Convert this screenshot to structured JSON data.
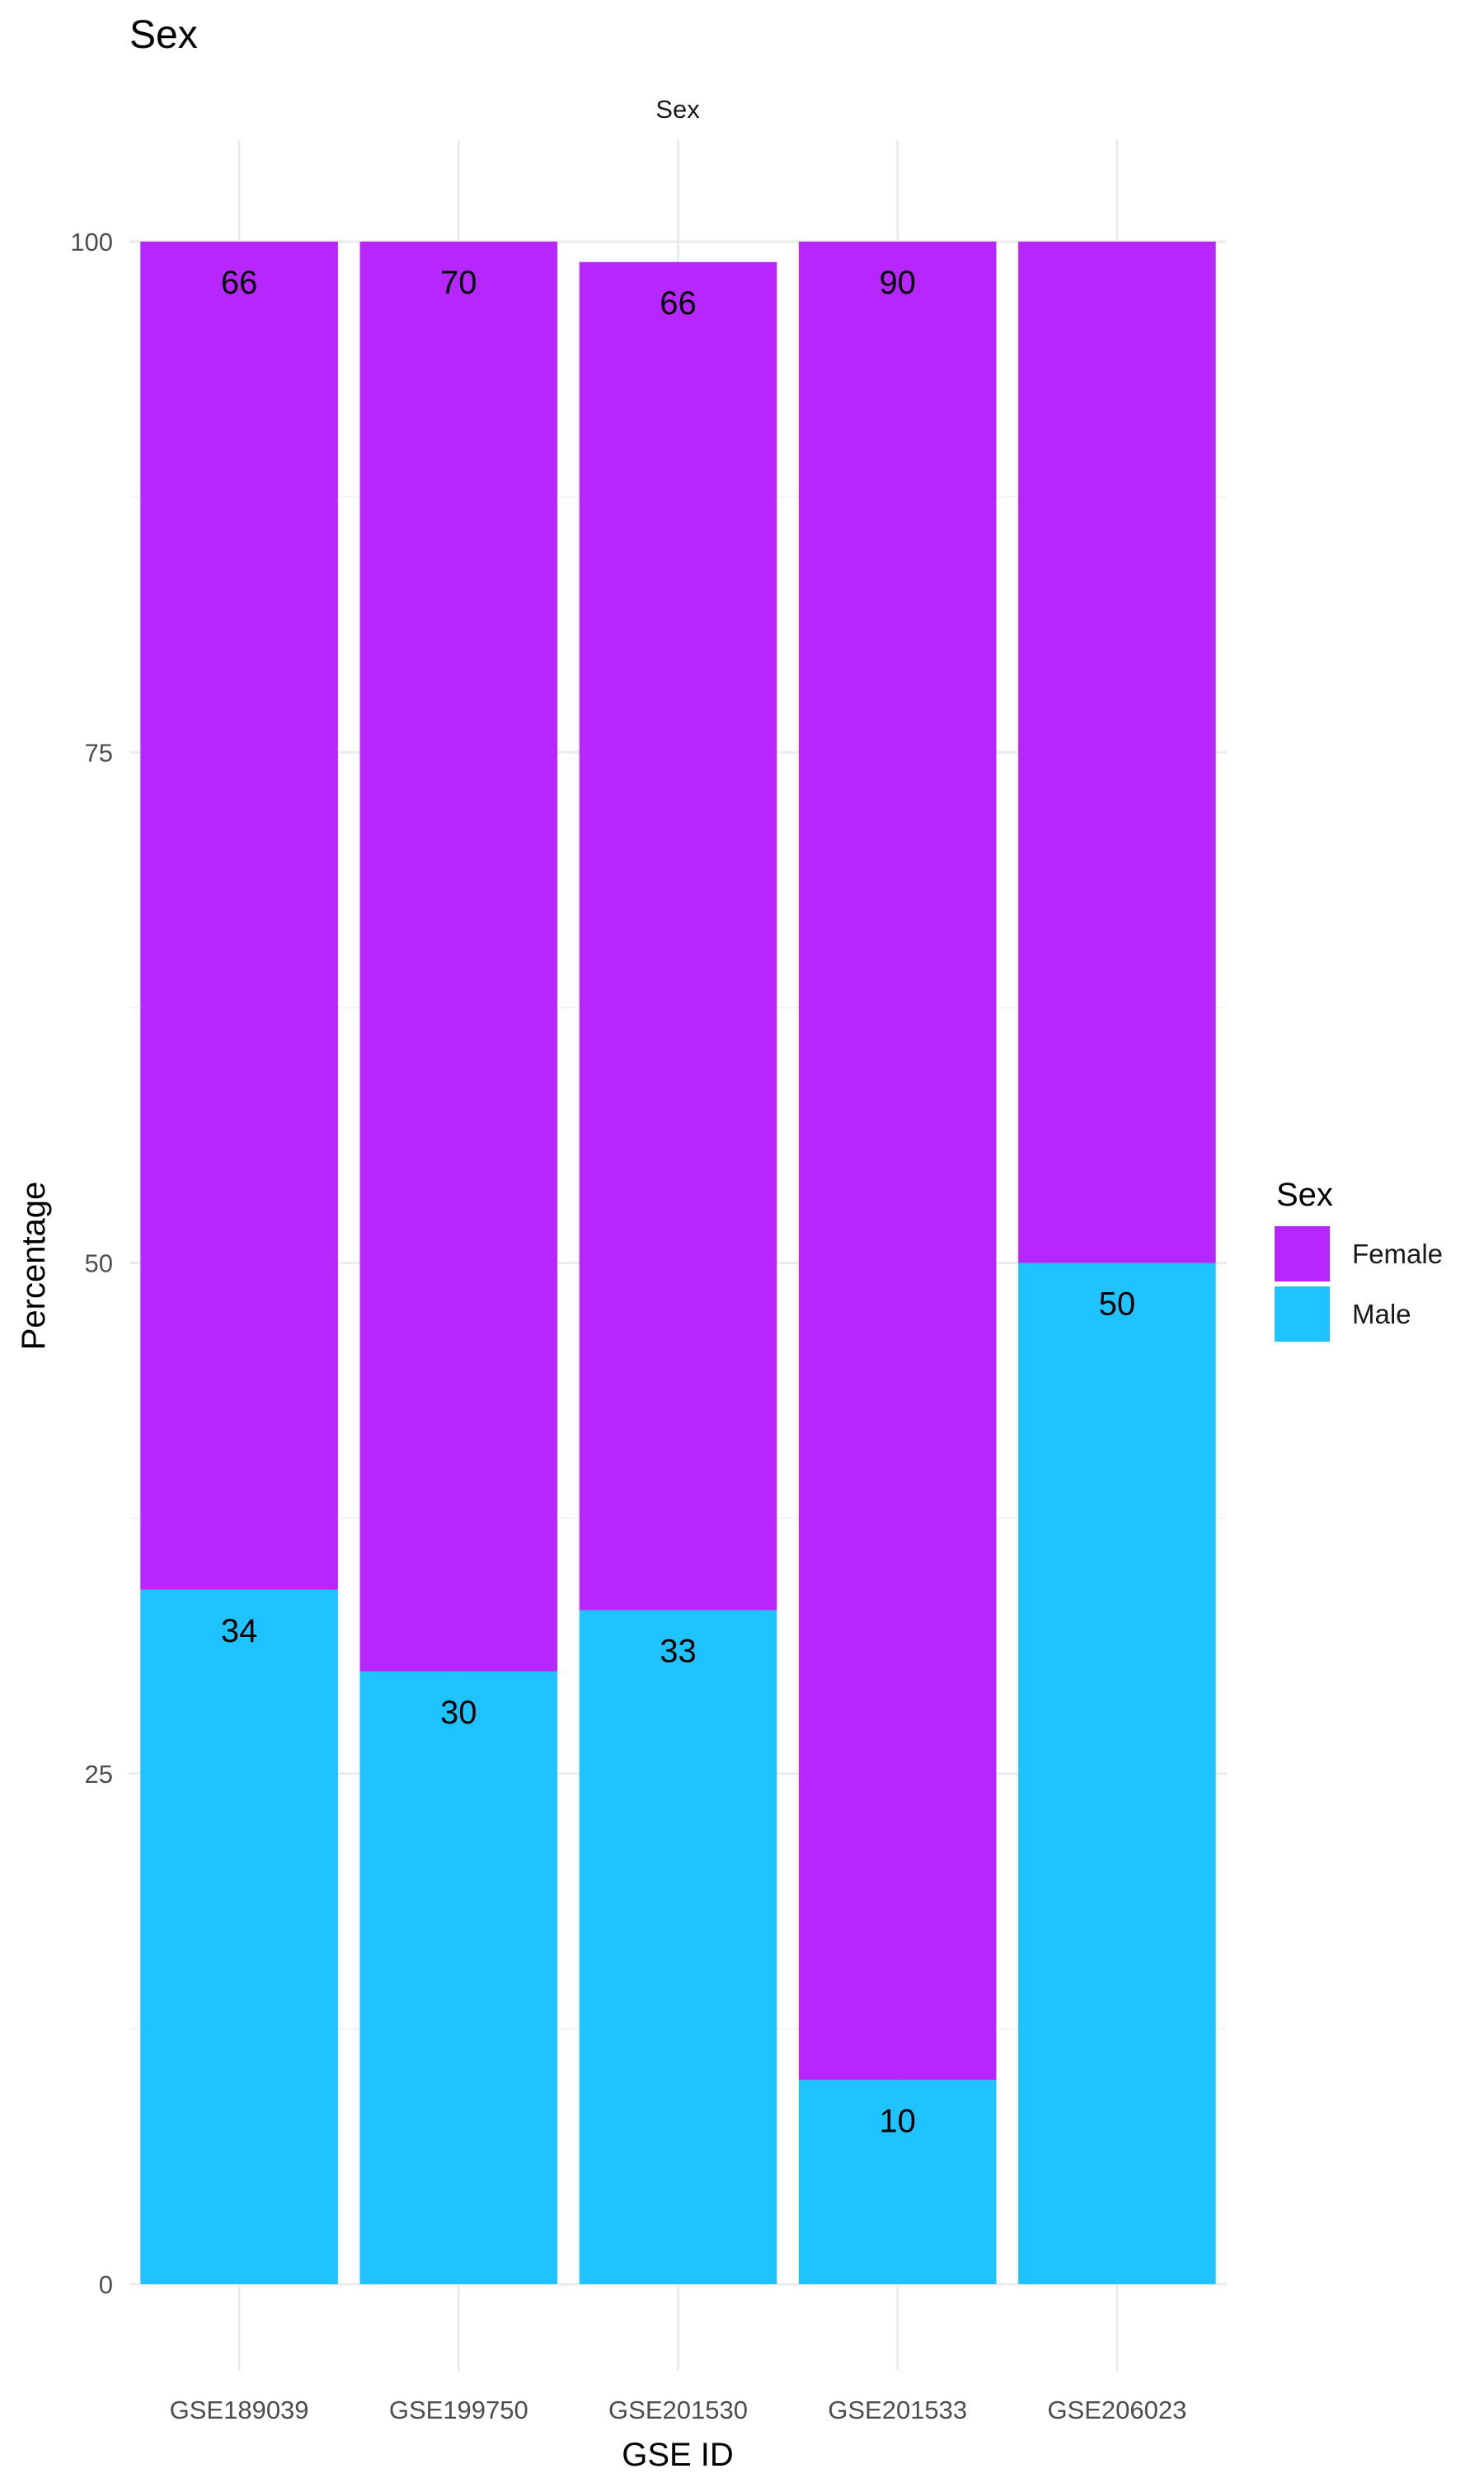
{
  "chart_data": {
    "type": "bar",
    "stacked": true,
    "title": "Sex",
    "facet_label": "Sex",
    "xlabel": "GSE ID",
    "ylabel": "Percentage",
    "categories": [
      "GSE189039",
      "GSE199750",
      "GSE201530",
      "GSE201533",
      "GSE206023"
    ],
    "y_ticks": [
      0,
      25,
      50,
      75,
      100
    ],
    "ylim": [
      0,
      100
    ],
    "grid": true,
    "legend": {
      "title": "Sex",
      "position": "right",
      "entries": [
        "Female",
        "Male"
      ]
    },
    "series": [
      {
        "name": "Male",
        "color": "#1EC3FF",
        "values": [
          34,
          30,
          33,
          10,
          50
        ],
        "labels": [
          "34",
          "30",
          "33",
          "10",
          "50"
        ]
      },
      {
        "name": "Female",
        "color": "#B726FF",
        "values": [
          66,
          70,
          66,
          90,
          50
        ],
        "labels": [
          "66",
          "70",
          "66",
          "90",
          ""
        ]
      }
    ]
  }
}
